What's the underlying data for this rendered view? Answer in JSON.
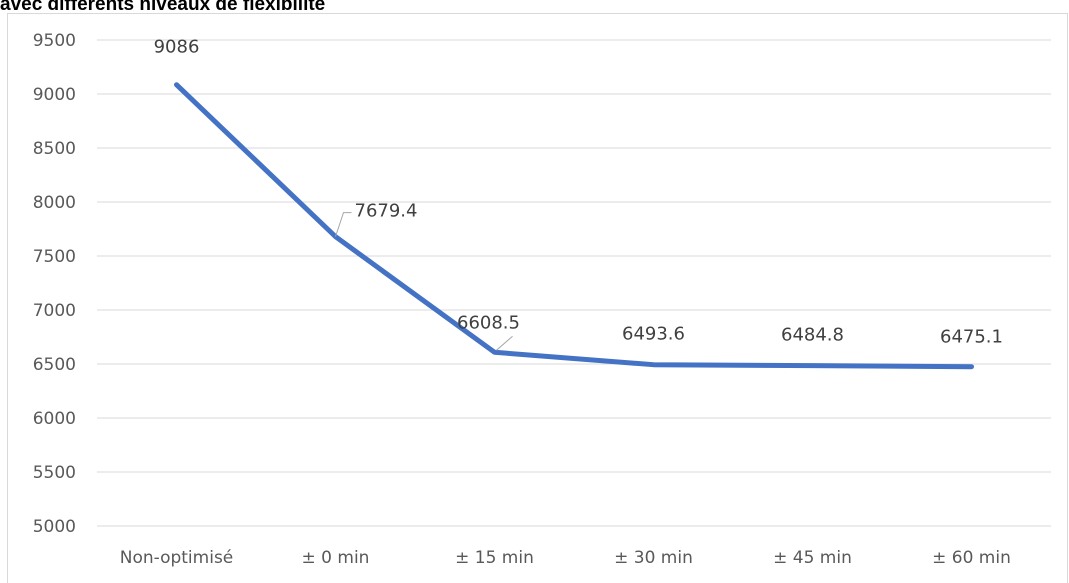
{
  "chart_data": {
    "type": "line",
    "title": "avec différents niveaux de flexibilité",
    "xlabel": "",
    "ylabel": "",
    "categories": [
      "Non-optimisé",
      "± 0 min",
      "± 15 min",
      "± 30 min",
      "± 45 min",
      "± 60 min"
    ],
    "series": [
      {
        "values": [
          9086,
          7679.4,
          6608.5,
          6493.6,
          6484.8,
          6475.1
        ],
        "data_labels": [
          "9086",
          "7679.4",
          "6608.5",
          "6493.6",
          "6484.8",
          "6475.1"
        ],
        "color": "#4472c4"
      }
    ],
    "ylim": [
      5000,
      9500
    ],
    "yticks": [
      5000,
      5500,
      6000,
      6500,
      7000,
      7500,
      8000,
      8500,
      9000,
      9500
    ],
    "grid": true,
    "legend": "none"
  },
  "colors": {
    "line": "#4472c4",
    "grid": "#d9d9d9",
    "leader": "#a6a6a6"
  }
}
